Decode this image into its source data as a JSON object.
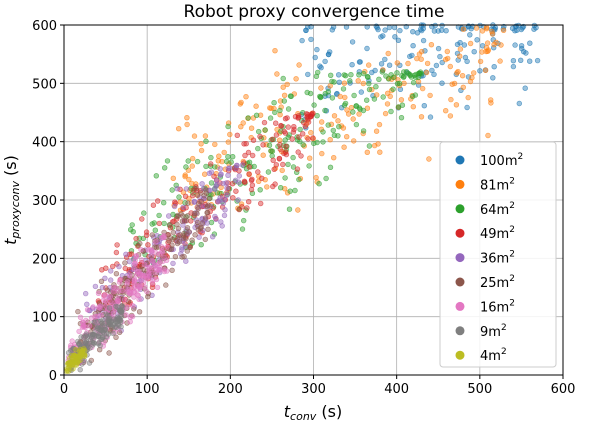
{
  "chart_data": {
    "type": "scatter",
    "title": "Robot proxy convergence time",
    "xlabel": {
      "main": "t",
      "sub": "conv",
      "unit": " (s)"
    },
    "ylabel": {
      "main": "t",
      "sub": "proxyconv",
      "unit": " (s)"
    },
    "xlim": [
      0,
      600
    ],
    "ylim": [
      0,
      600
    ],
    "xticks": [
      0,
      100,
      200,
      300,
      400,
      500,
      600
    ],
    "yticks": [
      0,
      100,
      200,
      300,
      400,
      500,
      600
    ],
    "grid": true,
    "legend_position": "right",
    "series": [
      {
        "name": "100m2",
        "label_base": "100m",
        "label_sup": "2",
        "color": "#1f77b4",
        "n": 160,
        "x_range": [
          280,
          570
        ],
        "slope": 0.25,
        "intercept": 455,
        "spread": 55,
        "y_clip": [
          400,
          600
        ]
      },
      {
        "name": "81m2",
        "label_base": "81m",
        "label_sup": "2",
        "color": "#ff7f0e",
        "n": 220,
        "x_range": [
          130,
          530
        ],
        "slope": 0.6,
        "intercept": 245,
        "spread": 55,
        "y_clip": [
          280,
          600
        ]
      },
      {
        "name": "64m2",
        "label_base": "64m",
        "label_sup": "2",
        "color": "#2ca02c",
        "n": 230,
        "x_range": [
          80,
          430
        ],
        "slope": 0.9,
        "intercept": 150,
        "spread": 50,
        "y_clip": [
          190,
          520
        ]
      },
      {
        "name": "49m2",
        "label_base": "49m",
        "label_sup": "2",
        "color": "#d62728",
        "n": 200,
        "x_range": [
          40,
          300
        ],
        "slope": 1.25,
        "intercept": 80,
        "spread": 35,
        "y_clip": [
          120,
          450
        ]
      },
      {
        "name": "36m2",
        "label_base": "36m",
        "label_sup": "2",
        "color": "#9467bd",
        "n": 160,
        "x_range": [
          25,
          215
        ],
        "slope": 1.4,
        "intercept": 50,
        "spread": 30,
        "y_clip": [
          60,
          360
        ]
      },
      {
        "name": "25m2",
        "label_base": "25m",
        "label_sup": "2",
        "color": "#8c564b",
        "n": 200,
        "x_range": [
          10,
          175
        ],
        "slope": 1.5,
        "intercept": 30,
        "spread": 28,
        "y_clip": [
          20,
          320
        ]
      },
      {
        "name": "16m2",
        "label_base": "16m",
        "label_sup": "2",
        "color": "#e377c2",
        "n": 220,
        "x_range": [
          5,
          125
        ],
        "slope": 1.55,
        "intercept": 25,
        "spread": 22,
        "y_clip": [
          15,
          260
        ]
      },
      {
        "name": "9m2",
        "label_base": "9m",
        "label_sup": "2",
        "color": "#7f7f7f",
        "n": 160,
        "x_range": [
          5,
          70
        ],
        "slope": 1.3,
        "intercept": 15,
        "spread": 12,
        "y_clip": [
          5,
          120
        ]
      },
      {
        "name": "4m2",
        "label_base": "4m",
        "label_sup": "2",
        "color": "#bcbd22",
        "n": 70,
        "x_range": [
          2,
          25
        ],
        "slope": 1.3,
        "intercept": 8,
        "spread": 6,
        "y_clip": [
          2,
          45
        ]
      }
    ]
  }
}
